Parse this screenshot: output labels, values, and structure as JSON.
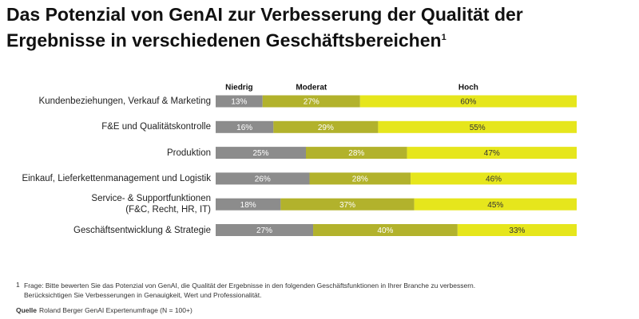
{
  "chart_data": {
    "type": "stacked-bar-horizontal",
    "title": "Das Potenzial von GenAI zur Verbesserung der Qualität der Ergebnisse in verschiedenen Geschäftsbereichen",
    "title_note": "1",
    "categories": [
      "Kundenbeziehungen, Verkauf & Marketing",
      "F&E und Qualitätskontrolle",
      "Produktion",
      "Einkauf, Lieferkettenmanagement und Logistik",
      "Service- & Supportfunktionen\n(F&C, Recht, HR, IT)",
      "Geschäftsentwicklung & Strategie"
    ],
    "series": [
      {
        "name": "Niedrig",
        "color": "#8c8c8c",
        "label_color": "#ffffff",
        "values": [
          13,
          16,
          25,
          26,
          18,
          27
        ],
        "value_labels": [
          "13%",
          "16%",
          "25%",
          "26%",
          "18%",
          "27%"
        ]
      },
      {
        "name": "Moderat",
        "color": "#b2b22c",
        "label_color": "#ffffff",
        "values": [
          27,
          29,
          28,
          28,
          37,
          40
        ],
        "value_labels": [
          "27%",
          "29%",
          "28%",
          "28%",
          "37%",
          "40%"
        ]
      },
      {
        "name": "Hoch",
        "color": "#e6e61c",
        "label_color": "#333333",
        "values": [
          60,
          55,
          47,
          46,
          45,
          33
        ],
        "value_labels": [
          "60%",
          "55%",
          "47%",
          "46%",
          "45%",
          "33%"
        ]
      }
    ],
    "footnote_marker": "1",
    "footnote": "Frage: Bitte bewerten Sie das Potenzial von GenAI, die Qualität der Ergebnisse in den folgenden Geschäftsfunktionen in Ihrer Branche zu verbessern.\nBerücksichtigen Sie Verbesserungen in Genauigkeit, Wert und Professionalität.",
    "source_label": "Quelle",
    "source": "Roland Berger GenAI Expertenumfrage (N = 100+)"
  }
}
